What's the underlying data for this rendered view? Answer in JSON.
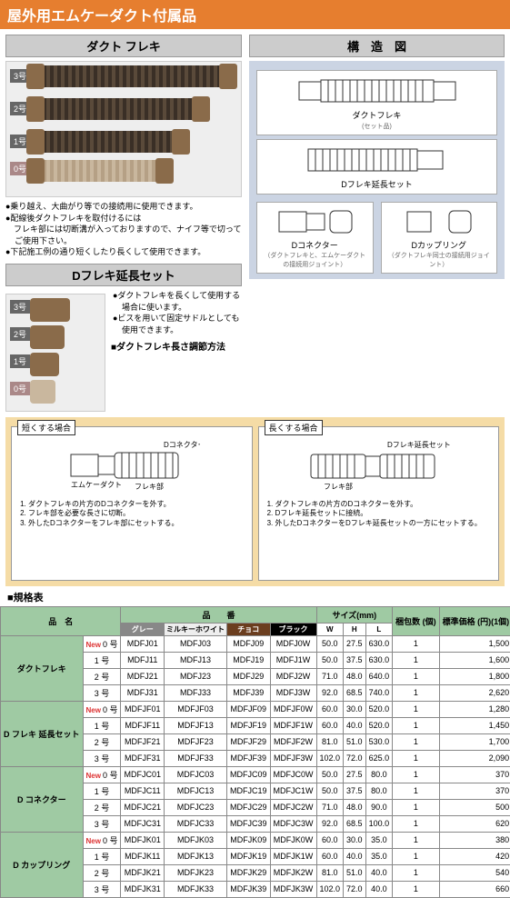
{
  "title": "屋外用エムケーダクト付属品",
  "s1": {
    "head": "ダクト フレキ",
    "num3": "3号",
    "num2": "2号",
    "num1": "1号",
    "num0": "0号",
    "b1": "●乗り越え、大曲がり等での接続用に使用できます。",
    "b2": "●配線後ダクトフレキを取付けるには",
    "b3": "　フレキ部には切断溝が入っておりますので、ナイフ等で切ってご使用下さい。",
    "b4": "●下記施工例の通り短くしたり長くして使用できます。"
  },
  "s2": {
    "head": "Dフレキ延長セット",
    "num3": "3号",
    "num2": "2号",
    "num1": "1号",
    "num0": "0号",
    "b1": "●ダクトフレキを長くして使用する場合に使います。",
    "b2": "●ビスを用いて固定サドルとしても使用できます。",
    "sub": "■ダクトフレキ長さ調節方法"
  },
  "struct": {
    "head": "構　造　図",
    "c1": "ダクトフレキ",
    "c1s": "(セット品)",
    "c2": "Dフレキ延長セット",
    "c3": "Dコネクター",
    "c3s": "（ダクトフレキと、エムケーダクトの接続用ジョイント）",
    "c4": "Dカップリング",
    "c4s": "（ダクトフレキ同士の接続用ジョイント）"
  },
  "adj": {
    "l1": "短くする場合",
    "l2": "長くする場合",
    "p1": "Dコネクター",
    "p2": "エムケーダクト",
    "p3": "フレキ部",
    "p4": "Dフレキ延長セット",
    "s1_1": "ダクトフレキの片方のDコネクターを外す。",
    "s1_2": "フレキ部を必要な長さに切断。",
    "s1_3": "外したDコネクターをフレキ部にセットする。",
    "s2_1": "ダクトフレキの片方のDコネクターを外す。",
    "s2_2": "Dフレキ延長セットに接続。",
    "s2_3": "外したDコネクターをDフレキ延長セットの一方にセットする。"
  },
  "spec": {
    "label": "■規格表",
    "h": {
      "name": "品　名",
      "code": "品　　番",
      "size": "サイズ(mm)",
      "pack": "梱包数\n(個)",
      "price": "標準価格\n(円)(1個)",
      "gray": "グレー",
      "white": "ミルキーホワイト",
      "brown": "チョコ",
      "black": "ブラック",
      "W": "W",
      "H": "H",
      "L": "L"
    },
    "groups": [
      {
        "name": "ダクトフレキ",
        "rows": [
          {
            "new": true,
            "no": "0 号",
            "c": [
              "MDFJ01",
              "MDFJ03",
              "MDFJ09",
              "MDFJ0W"
            ],
            "w": "50.0",
            "h": "27.5",
            "l": "630.0",
            "pack": "1",
            "price": "1,500"
          },
          {
            "no": "1 号",
            "c": [
              "MDFJ11",
              "MDFJ13",
              "MDFJ19",
              "MDFJ1W"
            ],
            "w": "50.0",
            "h": "37.5",
            "l": "630.0",
            "pack": "1",
            "price": "1,600"
          },
          {
            "no": "2 号",
            "c": [
              "MDFJ21",
              "MDFJ23",
              "MDFJ29",
              "MDFJ2W"
            ],
            "w": "71.0",
            "h": "48.0",
            "l": "640.0",
            "pack": "1",
            "price": "1,800"
          },
          {
            "no": "3 号",
            "c": [
              "MDFJ31",
              "MDFJ33",
              "MDFJ39",
              "MDFJ3W"
            ],
            "w": "92.0",
            "h": "68.5",
            "l": "740.0",
            "pack": "1",
            "price": "2,620"
          }
        ]
      },
      {
        "name": "D フレキ\n延長セット",
        "rows": [
          {
            "new": true,
            "no": "0 号",
            "c": [
              "MDFJF01",
              "MDFJF03",
              "MDFJF09",
              "MDFJF0W"
            ],
            "w": "60.0",
            "h": "30.0",
            "l": "520.0",
            "pack": "1",
            "price": "1,280"
          },
          {
            "no": "1 号",
            "c": [
              "MDFJF11",
              "MDFJF13",
              "MDFJF19",
              "MDFJF1W"
            ],
            "w": "60.0",
            "h": "40.0",
            "l": "520.0",
            "pack": "1",
            "price": "1,450"
          },
          {
            "no": "2 号",
            "c": [
              "MDFJF21",
              "MDFJF23",
              "MDFJF29",
              "MDFJF2W"
            ],
            "w": "81.0",
            "h": "51.0",
            "l": "530.0",
            "pack": "1",
            "price": "1,700"
          },
          {
            "no": "3 号",
            "c": [
              "MDFJF31",
              "MDFJF33",
              "MDFJF39",
              "MDFJF3W"
            ],
            "w": "102.0",
            "h": "72.0",
            "l": "625.0",
            "pack": "1",
            "price": "2,090"
          }
        ]
      },
      {
        "name": "D コネクター",
        "rows": [
          {
            "new": true,
            "no": "0 号",
            "c": [
              "MDFJC01",
              "MDFJC03",
              "MDFJC09",
              "MDFJC0W"
            ],
            "w": "50.0",
            "h": "27.5",
            "l": "80.0",
            "pack": "1",
            "price": "370"
          },
          {
            "no": "1 号",
            "c": [
              "MDFJC11",
              "MDFJC13",
              "MDFJC19",
              "MDFJC1W"
            ],
            "w": "50.0",
            "h": "37.5",
            "l": "80.0",
            "pack": "1",
            "price": "370"
          },
          {
            "no": "2 号",
            "c": [
              "MDFJC21",
              "MDFJC23",
              "MDFJC29",
              "MDFJC2W"
            ],
            "w": "71.0",
            "h": "48.0",
            "l": "90.0",
            "pack": "1",
            "price": "500"
          },
          {
            "no": "3 号",
            "c": [
              "MDFJC31",
              "MDFJC33",
              "MDFJC39",
              "MDFJC3W"
            ],
            "w": "92.0",
            "h": "68.5",
            "l": "100.0",
            "pack": "1",
            "price": "620"
          }
        ]
      },
      {
        "name": "D カップリング",
        "rows": [
          {
            "new": true,
            "no": "0 号",
            "c": [
              "MDFJK01",
              "MDFJK03",
              "MDFJK09",
              "MDFJK0W"
            ],
            "w": "60.0",
            "h": "30.0",
            "l": "35.0",
            "pack": "1",
            "price": "380"
          },
          {
            "no": "1 号",
            "c": [
              "MDFJK11",
              "MDFJK13",
              "MDFJK19",
              "MDFJK1W"
            ],
            "w": "60.0",
            "h": "40.0",
            "l": "35.0",
            "pack": "1",
            "price": "420"
          },
          {
            "no": "2 号",
            "c": [
              "MDFJK21",
              "MDFJK23",
              "MDFJK29",
              "MDFJK2W"
            ],
            "w": "81.0",
            "h": "51.0",
            "l": "40.0",
            "pack": "1",
            "price": "540"
          },
          {
            "no": "3 号",
            "c": [
              "MDFJK31",
              "MDFJK33",
              "MDFJK39",
              "MDFJK3W"
            ],
            "w": "102.0",
            "h": "72.0",
            "l": "40.0",
            "pack": "1",
            "price": "660"
          }
        ]
      }
    ]
  }
}
